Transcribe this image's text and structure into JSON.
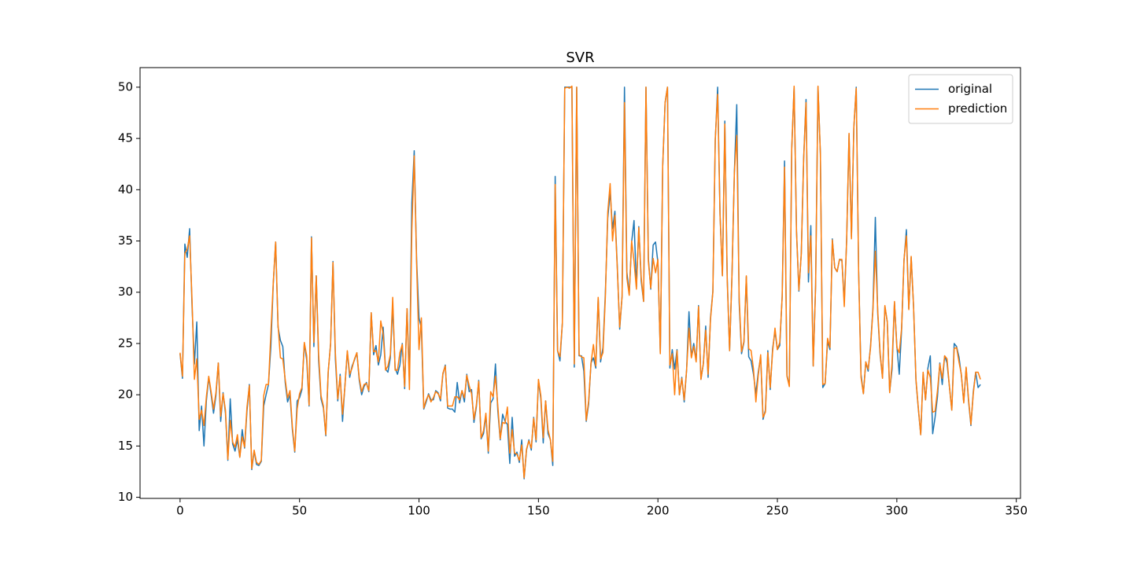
{
  "chart_data": {
    "type": "line",
    "title": "SVR",
    "x": [
      0,
      1,
      2,
      3,
      4,
      5,
      6,
      7,
      8,
      9,
      10,
      11,
      12,
      13,
      14,
      15,
      16,
      17,
      18,
      19,
      20,
      21,
      22,
      23,
      24,
      25,
      26,
      27,
      28,
      29,
      30,
      31,
      32,
      33,
      34,
      35,
      36,
      37,
      38,
      39,
      40,
      41,
      42,
      43,
      44,
      45,
      46,
      47,
      48,
      49,
      50,
      51,
      52,
      53,
      54,
      55,
      56,
      57,
      58,
      59,
      60,
      61,
      62,
      63,
      64,
      65,
      66,
      67,
      68,
      69,
      70,
      71,
      72,
      73,
      74,
      75,
      76,
      77,
      78,
      79,
      80,
      81,
      82,
      83,
      84,
      85,
      86,
      87,
      88,
      89,
      90,
      91,
      92,
      93,
      94,
      95,
      96,
      97,
      98,
      99,
      100,
      101,
      102,
      103,
      104,
      105,
      106,
      107,
      108,
      109,
      110,
      111,
      112,
      113,
      114,
      115,
      116,
      117,
      118,
      119,
      120,
      121,
      122,
      123,
      124,
      125,
      126,
      127,
      128,
      129,
      130,
      131,
      132,
      133,
      134,
      135,
      136,
      137,
      138,
      139,
      140,
      141,
      142,
      143,
      144,
      145,
      146,
      147,
      148,
      149,
      150,
      151,
      152,
      153,
      154,
      155,
      156,
      157,
      158,
      159,
      160,
      161,
      162,
      163,
      164,
      165,
      166,
      167,
      168,
      169,
      170,
      171,
      172,
      173,
      174,
      175,
      176,
      177,
      178,
      179,
      180,
      181,
      182,
      183,
      184,
      185,
      186,
      187,
      188,
      189,
      190,
      191,
      192,
      193,
      194,
      195,
      196,
      197,
      198,
      199,
      200,
      201,
      202,
      203,
      204,
      205,
      206,
      207,
      208,
      209,
      210,
      211,
      212,
      213,
      214,
      215,
      216,
      217,
      218,
      219,
      220,
      221,
      222,
      223,
      224,
      225,
      226,
      227,
      228,
      229,
      230,
      231,
      232,
      233,
      234,
      235,
      236,
      237,
      238,
      239,
      240,
      241,
      242,
      243,
      244,
      245,
      246,
      247,
      248,
      249,
      250,
      251,
      252,
      253,
      254,
      255,
      256,
      257,
      258,
      259,
      260,
      261,
      262,
      263,
      264,
      265,
      266,
      267,
      268,
      269,
      270,
      271,
      272,
      273,
      274,
      275,
      276,
      277,
      278,
      279,
      280,
      281,
      282,
      283,
      284,
      285,
      286,
      287,
      288,
      289,
      290,
      291,
      292,
      293,
      294,
      295,
      296,
      297,
      298,
      299,
      300,
      301,
      302,
      303,
      304,
      305,
      306,
      307,
      308,
      309,
      310,
      311,
      312,
      313,
      314,
      315,
      316,
      317,
      318,
      319,
      320,
      321,
      322,
      323,
      324,
      325,
      326,
      327,
      328,
      329,
      330,
      331,
      332,
      333,
      334,
      335
    ],
    "series": [
      {
        "name": "original",
        "color": "#1f77b4",
        "values": [
          24,
          21.6,
          34.7,
          33.4,
          36.2,
          28.7,
          23,
          27.1,
          16.5,
          18.9,
          15,
          19.4,
          21.7,
          20,
          18.2,
          19.9,
          23.1,
          17.4,
          20.2,
          18.2,
          13.6,
          19.6,
          15.2,
          14.5,
          15.6,
          13.9,
          16.6,
          14.8,
          18.4,
          21,
          12.7,
          14.5,
          13.2,
          13.1,
          13.5,
          18.9,
          20,
          21,
          24.7,
          30.8,
          34.9,
          26.6,
          25.3,
          24.7,
          21.2,
          19.3,
          20,
          16.6,
          14.4,
          19.4,
          19.7,
          20.5,
          25,
          23.4,
          18.9,
          35.4,
          24.7,
          31.6,
          23.3,
          19.6,
          18.7,
          16,
          22.2,
          25,
          33,
          23.5,
          19.4,
          22,
          17.4,
          20.9,
          24.2,
          21.7,
          22.8,
          23.4,
          24.1,
          21.4,
          20,
          20.8,
          21.2,
          20.3,
          28,
          23.9,
          24.8,
          22.9,
          23.9,
          26.6,
          22.5,
          22.2,
          23.6,
          28.7,
          22.6,
          22,
          22.9,
          25,
          20.6,
          28.4,
          21.4,
          38.7,
          43.8,
          33.2,
          27.5,
          26.5,
          18.6,
          19.3,
          20.1,
          19.5,
          19.5,
          20.4,
          20.2,
          19.4,
          22,
          22.9,
          18.7,
          18.6,
          18.6,
          18.3,
          21.2,
          19.2,
          20.4,
          19.3,
          22,
          20.3,
          20.5,
          17.3,
          18.8,
          21.4,
          15.7,
          16.2,
          18,
          14.3,
          19.2,
          19.6,
          23,
          18.4,
          15.6,
          18.1,
          17.4,
          17.1,
          13.3,
          17.8,
          14,
          14.4,
          13.4,
          15.6,
          11.8,
          14.6,
          15.6,
          14.6,
          17.8,
          15.4,
          21.4,
          19.6,
          15.3,
          19.4,
          16.2,
          15.6,
          13.1,
          41.3,
          24.3,
          23.3,
          27,
          50,
          50,
          50,
          50,
          22.7,
          50,
          23.8,
          23.8,
          22.3,
          17.4,
          19.1,
          23.1,
          23.6,
          22.6,
          29.4,
          23.2,
          24.6,
          29.9,
          37.2,
          39.8,
          36.2,
          37.9,
          32.5,
          26.4,
          29.6,
          50,
          32,
          29.8,
          34.9,
          37,
          30.5,
          36.4,
          31.1,
          29.1,
          50,
          33.3,
          30.3,
          34.6,
          34.9,
          32.9,
          24.1,
          42.3,
          48.5,
          50,
          22.6,
          24.4,
          22.5,
          24.4,
          20,
          21.7,
          19.3,
          22.4,
          28.1,
          23.7,
          25,
          23.3,
          28.7,
          21.5,
          23,
          26.7,
          21.7,
          27.5,
          30.1,
          44.8,
          50,
          37.6,
          31.6,
          46.7,
          31.5,
          24.3,
          31.7,
          41.7,
          48.3,
          29,
          24,
          25.1,
          31.5,
          23.7,
          23.3,
          22,
          20.1,
          22.2,
          23.7,
          17.6,
          18.5,
          24.3,
          20.5,
          24.5,
          26.2,
          24.4,
          24.8,
          29.6,
          42.8,
          21.9,
          20.9,
          44,
          50,
          36,
          30.1,
          33.8,
          43.1,
          48.8,
          31,
          36.5,
          22.8,
          30.7,
          50,
          43.5,
          20.7,
          21.1,
          25.2,
          24.4,
          35.2,
          32.4,
          32,
          33.2,
          33.1,
          29.1,
          35.1,
          45.4,
          35.4,
          46,
          50,
          32.2,
          22,
          20.1,
          23.2,
          22.3,
          24.8,
          28.5,
          37.3,
          27.9,
          23.9,
          21.7,
          28.6,
          27.1,
          20.3,
          22.5,
          29,
          24.8,
          22,
          26.4,
          33.1,
          36.1,
          28.4,
          33.4,
          28.6,
          21.4,
          18.6,
          16.1,
          22.1,
          19.5,
          22.6,
          23.8,
          16.2,
          17.8,
          19.8,
          23.1,
          21,
          23.8,
          23.1,
          20.8,
          18.5,
          25,
          24.7,
          23.7,
          21.9,
          19.3,
          22.6,
          19.4,
          17,
          20.3,
          22.2,
          20.7,
          21
        ]
      },
      {
        "name": "prediction",
        "color": "#ff7f0e",
        "values": [
          24.1,
          21.8,
          33.8,
          34.2,
          35.5,
          29.3,
          21.5,
          23.5,
          17.6,
          18.5,
          17,
          19.8,
          21.8,
          20.3,
          18.6,
          20.2,
          23.1,
          17.9,
          20.1,
          18.5,
          13.7,
          17.5,
          15.4,
          14.9,
          16.1,
          13.9,
          15.9,
          14.9,
          18.8,
          20.9,
          12.8,
          14.6,
          13.4,
          13.2,
          13.6,
          19.9,
          21,
          21,
          26,
          30.9,
          34.9,
          26.8,
          23.6,
          23.5,
          21.5,
          19.7,
          20.4,
          16.9,
          14.5,
          18.6,
          20.1,
          20.7,
          25.1,
          23.8,
          19,
          35.3,
          25.1,
          31.6,
          23.9,
          19.9,
          18.9,
          16.1,
          22.3,
          24.9,
          32.9,
          24.1,
          19.6,
          21.8,
          18.1,
          20.8,
          24.3,
          22,
          22.6,
          23.5,
          24.1,
          21.6,
          20.3,
          21,
          21.1,
          20.4,
          28,
          24.2,
          24.3,
          23.2,
          27.2,
          25.9,
          22.4,
          22.8,
          23.9,
          29.5,
          22.4,
          22.4,
          24.1,
          24.9,
          20.8,
          28.4,
          20.5,
          36,
          43.3,
          32.8,
          24.4,
          27.5,
          18.7,
          19.5,
          20,
          19.3,
          19.7,
          20.3,
          20.1,
          19.6,
          22.1,
          22.8,
          18.9,
          18.9,
          18.9,
          19.8,
          19.8,
          19.5,
          20.4,
          19.7,
          21.9,
          20.9,
          20.1,
          17.6,
          19,
          21.3,
          15.8,
          16.5,
          18.2,
          14.5,
          20.3,
          19.8,
          21.8,
          18.9,
          15.7,
          17.3,
          17.2,
          18.8,
          14.3,
          16.6,
          14.3,
          14.2,
          13.6,
          15.1,
          11.9,
          14.7,
          15.5,
          14.8,
          17.7,
          15.6,
          21.5,
          19.9,
          15.8,
          19.4,
          16.6,
          15.6,
          13.5,
          40.5,
          24.3,
          23.7,
          27,
          49.9,
          50,
          49.9,
          50.1,
          23,
          50,
          23.9,
          23.7,
          23.6,
          17.5,
          19.4,
          23.1,
          24.9,
          22.8,
          29.5,
          23.5,
          24.1,
          29.5,
          37.8,
          40.6,
          35,
          37.5,
          32.3,
          26.6,
          29.6,
          48.5,
          31.4,
          29.7,
          35,
          33,
          30.3,
          36.3,
          31.5,
          29.1,
          50,
          33,
          30.4,
          33.3,
          31.9,
          33.2,
          24,
          42.3,
          48.5,
          50,
          22.9,
          24,
          20,
          24.3,
          20,
          21.6,
          19.5,
          22.4,
          26.5,
          23.6,
          24.7,
          23.2,
          28.6,
          21.5,
          23,
          26.3,
          22,
          27.3,
          30,
          45,
          49.3,
          37.5,
          31.6,
          46.4,
          31.2,
          24.3,
          31.7,
          41.7,
          45.3,
          29.5,
          24.2,
          25.2,
          31.6,
          24.5,
          24.3,
          22.5,
          19.3,
          21.9,
          23.9,
          17.8,
          18.3,
          24.1,
          20.7,
          24.2,
          26.5,
          24.4,
          25.1,
          29.5,
          42.2,
          21.8,
          20.8,
          43.9,
          50.1,
          35.9,
          30.2,
          33.7,
          43,
          48.5,
          31.9,
          35.5,
          22.8,
          30.6,
          50.1,
          43.5,
          21,
          21.1,
          25.5,
          24.6,
          35.1,
          32.4,
          32,
          33.2,
          33.2,
          28.6,
          35.2,
          45.5,
          35.2,
          46.1,
          49.9,
          32.1,
          21.7,
          20.1,
          23.2,
          22.5,
          24.6,
          28.3,
          34,
          28.2,
          24.1,
          21.6,
          28.7,
          27.1,
          20.2,
          23.1,
          29.1,
          24.6,
          24.1,
          26.5,
          33.2,
          35.5,
          28.3,
          33.5,
          28.6,
          21.5,
          18.7,
          16.1,
          22.2,
          19.5,
          22.4,
          21.7,
          18.3,
          18.4,
          20.4,
          23,
          21.6,
          23.8,
          23.5,
          20.8,
          18.5,
          24.5,
          24.6,
          23.2,
          22,
          19.2,
          22.7,
          19.6,
          17.1,
          20.1,
          22.2,
          22.2,
          21.5
        ]
      }
    ],
    "xlim": [
      -16.75,
      351.75
    ],
    "ylim": [
      9.89,
      51.91
    ],
    "xticks": [
      0,
      50,
      100,
      150,
      200,
      250,
      300,
      350
    ],
    "yticks": [
      10,
      15,
      20,
      25,
      30,
      35,
      40,
      45,
      50
    ],
    "grid": false,
    "legend": "upper right"
  }
}
